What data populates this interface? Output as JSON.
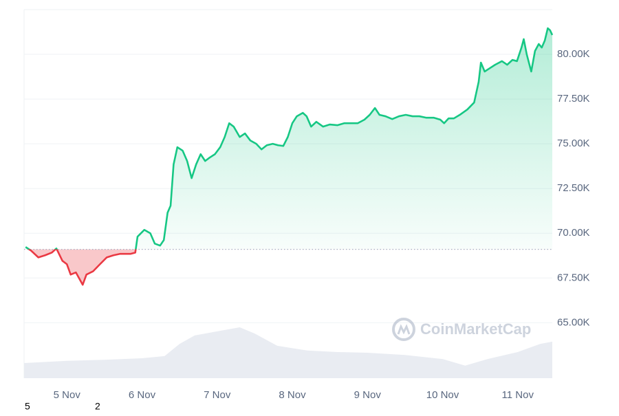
{
  "chart_data": {
    "type": "line",
    "x": [
      4.45,
      4.52,
      4.62,
      4.71,
      4.8,
      4.86,
      4.94,
      5.0,
      5.05,
      5.12,
      5.21,
      5.26,
      5.35,
      5.44,
      5.53,
      5.62,
      5.71,
      5.85,
      5.91,
      5.94,
      6.03,
      6.11,
      6.17,
      6.24,
      6.29,
      6.34,
      6.38,
      6.42,
      6.47,
      6.54,
      6.6,
      6.66,
      6.72,
      6.78,
      6.84,
      6.9,
      6.97,
      7.04,
      7.1,
      7.16,
      7.22,
      7.3,
      7.37,
      7.44,
      7.52,
      7.59,
      7.66,
      7.74,
      7.81,
      7.88,
      7.94,
      8.0,
      8.06,
      8.14,
      8.19,
      8.25,
      8.32,
      8.41,
      8.5,
      8.6,
      8.69,
      8.78,
      8.87,
      8.96,
      9.03,
      9.1,
      9.16,
      9.24,
      9.33,
      9.42,
      9.51,
      9.6,
      9.69,
      9.78,
      9.88,
      9.97,
      10.02,
      10.08,
      10.15,
      10.24,
      10.33,
      10.42,
      10.48,
      10.51,
      10.56,
      10.63,
      10.7,
      10.79,
      10.86,
      10.93,
      10.99,
      11.05,
      11.08,
      11.12,
      11.18,
      11.23,
      11.28,
      11.32,
      11.36,
      11.4,
      11.43,
      11.46
    ],
    "values": [
      69230,
      69040,
      68650,
      68770,
      68920,
      69150,
      68460,
      68270,
      67690,
      67810,
      67120,
      67690,
      67880,
      68270,
      68650,
      68770,
      68850,
      68850,
      68920,
      69810,
      70190,
      70000,
      69420,
      69310,
      69620,
      71150,
      71540,
      73850,
      74810,
      74620,
      74040,
      73080,
      73850,
      74420,
      74040,
      74230,
      74420,
      74810,
      75380,
      76150,
      75960,
      75380,
      75580,
      75190,
      75000,
      74690,
      74920,
      75000,
      74920,
      74880,
      75380,
      76150,
      76540,
      76730,
      76540,
      75960,
      76230,
      75960,
      76080,
      76040,
      76150,
      76150,
      76150,
      76350,
      76620,
      77000,
      76620,
      76540,
      76380,
      76540,
      76620,
      76540,
      76540,
      76460,
      76460,
      76350,
      76150,
      76420,
      76420,
      76650,
      76920,
      77310,
      78460,
      79540,
      79040,
      79230,
      79420,
      79620,
      79420,
      79690,
      79620,
      80380,
      80850,
      80000,
      79040,
      80190,
      80580,
      80380,
      80770,
      81460,
      81350,
      81080
    ],
    "baseline": 69100,
    "colors": {
      "up": "#16c784",
      "down": "#ea3943",
      "volume": "#e9ecf2"
    },
    "volume": {
      "x": [
        4.43,
        5.0,
        5.5,
        6.0,
        6.3,
        6.5,
        6.7,
        7.0,
        7.3,
        7.5,
        7.8,
        8.2,
        8.6,
        9.0,
        9.5,
        10.0,
        10.3,
        10.6,
        11.0,
        11.3,
        11.46
      ],
      "values": [
        4.1,
        4.7,
        5.0,
        5.4,
        6.0,
        9.3,
        11.6,
        12.7,
        13.8,
        12.1,
        8.8,
        7.5,
        7.1,
        6.9,
        6.3,
        5.2,
        3.4,
        5.2,
        7.1,
        9.3,
        9.9
      ],
      "ylim": [
        0,
        100
      ]
    },
    "xlim": [
      4.43,
      11.46
    ],
    "xticks": [
      {
        "value": 5,
        "label": "5 Nov"
      },
      {
        "value": 6,
        "label": "6 Nov"
      },
      {
        "value": 7,
        "label": "7 Nov"
      },
      {
        "value": 8,
        "label": "8 Nov"
      },
      {
        "value": 9,
        "label": "9 Nov"
      },
      {
        "value": 10,
        "label": "10 Nov"
      },
      {
        "value": 11,
        "label": "11 Nov"
      }
    ],
    "ylim": [
      61900,
      82500
    ],
    "yticks": [
      {
        "value": 65000,
        "label": "65.00K"
      },
      {
        "value": 67500,
        "label": "67.50K"
      },
      {
        "value": 70000,
        "label": "70.00K"
      },
      {
        "value": 72500,
        "label": "72.50K"
      },
      {
        "value": 75000,
        "label": "75.00K"
      },
      {
        "value": 77500,
        "label": "77.50K"
      },
      {
        "value": 80000,
        "label": "80.00K"
      }
    ],
    "grid": true,
    "watermark": "CoinMarketCap",
    "footer_labels": [
      "5",
      "2"
    ]
  }
}
